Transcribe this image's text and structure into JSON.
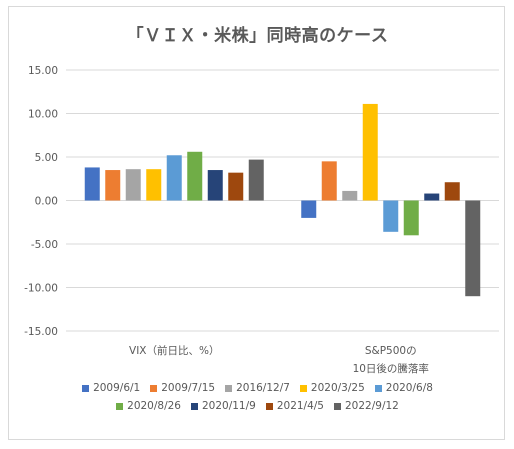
{
  "chart_data": {
    "type": "bar",
    "title": "「ＶＩＸ・米株」同時高のケース",
    "categories": [
      "VIX（前日比、%）",
      "S&P500の\n10日後の騰落率"
    ],
    "ylim": [
      -15,
      15
    ],
    "yticks": [
      "15.00",
      "10.00",
      "5.00",
      "0.00",
      "-5.00",
      "-10.00",
      "-15.00"
    ],
    "ytick_values": [
      15,
      10,
      5,
      0,
      -5,
      -10,
      -15
    ],
    "grid": true,
    "legend_position": "bottom",
    "series": [
      {
        "name": "2009/6/1",
        "color": "#4472C4",
        "values": [
          3.8,
          -2.0
        ]
      },
      {
        "name": "2009/7/15",
        "color": "#ED7D31",
        "values": [
          3.5,
          4.5
        ]
      },
      {
        "name": "2016/12/7",
        "color": "#A5A5A5",
        "values": [
          3.6,
          1.1
        ]
      },
      {
        "name": "2020/3/25",
        "color": "#FFC000",
        "values": [
          3.6,
          11.1
        ]
      },
      {
        "name": "2020/6/8",
        "color": "#5B9BD5",
        "values": [
          5.2,
          -3.6
        ]
      },
      {
        "name": "2020/8/26",
        "color": "#70AD47",
        "values": [
          5.6,
          -4.0
        ]
      },
      {
        "name": "2020/11/9",
        "color": "#264478",
        "values": [
          3.5,
          0.8
        ]
      },
      {
        "name": "2021/4/5",
        "color": "#9E480E",
        "values": [
          3.2,
          2.1
        ]
      },
      {
        "name": "2022/9/12",
        "color": "#636363",
        "values": [
          4.7,
          -11.0
        ]
      }
    ]
  }
}
